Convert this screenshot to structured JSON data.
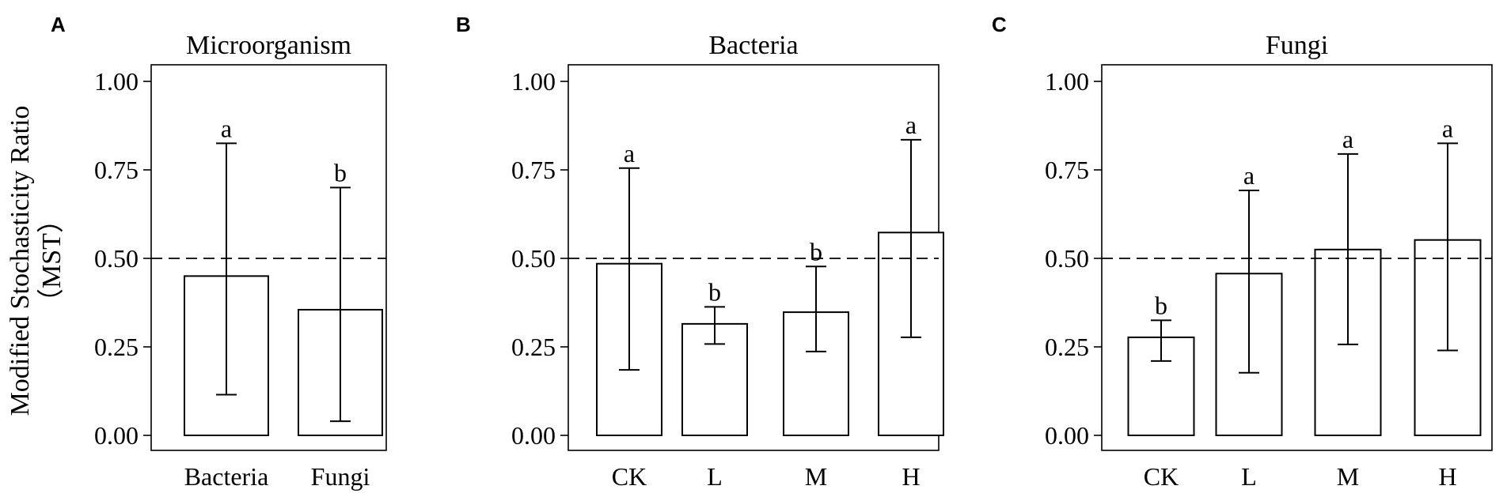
{
  "figure": {
    "ylabel_line1": "Modified Stochasticity Ratio",
    "ylabel_line2": "（MST）"
  },
  "chart_data": [
    {
      "panel": "A",
      "type": "bar",
      "title": "Microorganism",
      "categories": [
        "Bacteria",
        "Fungi"
      ],
      "values": [
        0.45,
        0.355
      ],
      "error_low": [
        0.115,
        0.04
      ],
      "error_high": [
        0.825,
        0.7
      ],
      "significance": [
        "a",
        "b"
      ],
      "yticks": [
        "0.00",
        "0.25",
        "0.50",
        "0.75",
        "1.00"
      ],
      "ylim": [
        0,
        1.05
      ],
      "reference_line": 0.5
    },
    {
      "panel": "B",
      "type": "bar",
      "title": "Bacteria",
      "categories": [
        "CK",
        "L",
        "M",
        "H"
      ],
      "values": [
        0.485,
        0.315,
        0.348,
        0.573
      ],
      "error_low": [
        0.185,
        0.258,
        0.237,
        0.277
      ],
      "error_high": [
        0.755,
        0.363,
        0.477,
        0.835
      ],
      "significance": [
        "a",
        "b",
        "b",
        "a"
      ],
      "yticks": [
        "0.00",
        "0.25",
        "0.50",
        "0.75",
        "1.00"
      ],
      "ylim": [
        0,
        1.05
      ],
      "reference_line": 0.5
    },
    {
      "panel": "C",
      "type": "bar",
      "title": "Fungi",
      "categories": [
        "CK",
        "L",
        "M",
        "H"
      ],
      "values": [
        0.277,
        0.457,
        0.525,
        0.552
      ],
      "error_low": [
        0.21,
        0.177,
        0.257,
        0.24
      ],
      "error_high": [
        0.325,
        0.692,
        0.795,
        0.825
      ],
      "significance": [
        "b",
        "a",
        "a",
        "a"
      ],
      "yticks": [
        "0.00",
        "0.25",
        "0.50",
        "0.75",
        "1.00"
      ],
      "ylim": [
        0,
        1.05
      ],
      "reference_line": 0.5
    }
  ]
}
